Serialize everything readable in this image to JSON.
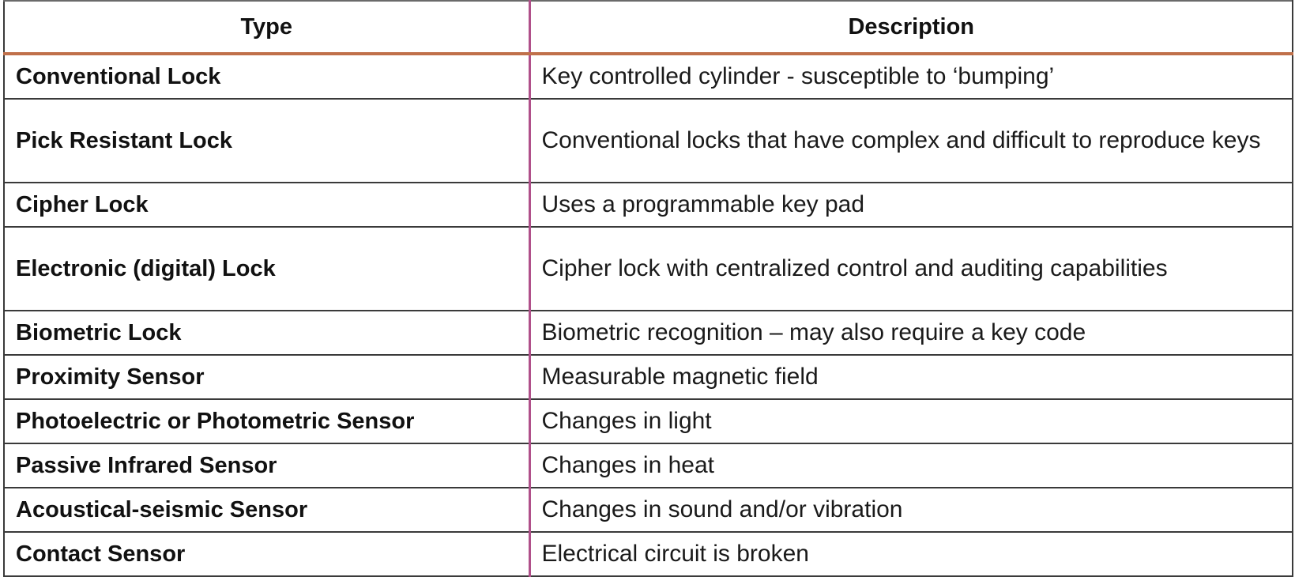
{
  "table": {
    "headers": {
      "type": "Type",
      "description": "Description"
    },
    "rows": [
      {
        "type": "Conventional Lock",
        "description": "Key controlled cylinder  - susceptible to ‘bumping’"
      },
      {
        "type": "Pick Resistant Lock",
        "description": "Conventional locks that have complex and difficult to reproduce keys"
      },
      {
        "type": "Cipher Lock",
        "description": "Uses a programmable key pad"
      },
      {
        "type": "Electronic (digital) Lock",
        "description": "Cipher lock with centralized control and auditing capabilities"
      },
      {
        "type": "Biometric Lock",
        "description": "Biometric recognition – may also require a key code"
      },
      {
        "type": "Proximity Sensor",
        "description": "Measurable magnetic field"
      },
      {
        "type": "Photoelectric or Photometric Sensor",
        "description": "Changes in light"
      },
      {
        "type": "Passive Infrared Sensor",
        "description": "Changes in heat"
      },
      {
        "type": "Acoustical-seismic Sensor",
        "description": "Changes in sound and/or vibration"
      },
      {
        "type": "Contact Sensor",
        "description": "Electrical circuit is broken"
      }
    ]
  },
  "colors": {
    "header_rule": "#c0704a",
    "column_divider": "#b0508a",
    "grid": "#3a3a3a"
  }
}
